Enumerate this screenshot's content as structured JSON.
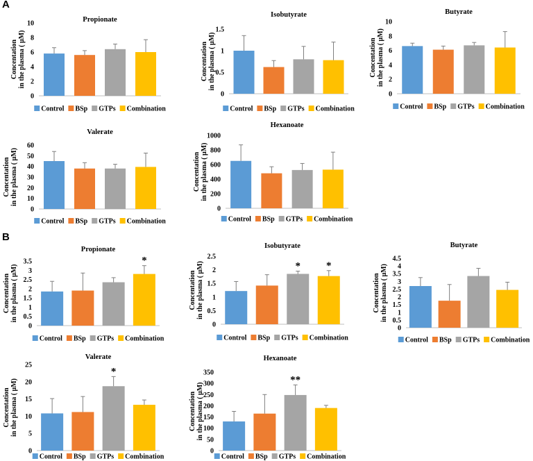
{
  "panels": [
    {
      "label": "A"
    },
    {
      "label": "B"
    }
  ],
  "legend": {
    "items": [
      "Control",
      "BSp",
      "GTPs",
      "Combination"
    ],
    "colors": [
      "#5b9bd5",
      "#ed7d31",
      "#a5a5a5",
      "#ffc000"
    ]
  },
  "y_axis_label_line1": "Concentation",
  "y_axis_label_line2": "in the plasma ( μM)",
  "chart_data": [
    {
      "panel": "A",
      "type": "bar",
      "title": "Propionate",
      "categories": [
        "Control",
        "BSp",
        "GTPs",
        "Combination"
      ],
      "values": [
        5.8,
        5.6,
        6.4,
        6.0
      ],
      "errors": [
        0.8,
        0.6,
        0.7,
        1.7
      ],
      "significance": [
        "",
        "",
        "",
        ""
      ],
      "ylim": [
        0,
        10
      ],
      "yticks": [
        "0",
        "2",
        "4",
        "6",
        "8",
        "10"
      ]
    },
    {
      "panel": "A",
      "type": "bar",
      "title": "Isobutyrate",
      "categories": [
        "Control",
        "BSp",
        "GTPs",
        "Combination"
      ],
      "values": [
        1.0,
        0.62,
        0.8,
        0.78
      ],
      "errors": [
        0.35,
        0.15,
        0.3,
        0.42
      ],
      "significance": [
        "",
        "",
        "",
        ""
      ],
      "ylim": [
        0,
        1.5
      ],
      "yticks": [
        "0",
        "0.5",
        "1",
        "1.5"
      ]
    },
    {
      "panel": "A",
      "type": "bar",
      "title": "Butyrate",
      "categories": [
        "Control",
        "BSp",
        "GTPs",
        "Combination"
      ],
      "values": [
        6.6,
        6.1,
        6.7,
        6.4
      ],
      "errors": [
        0.4,
        0.5,
        0.4,
        2.2
      ],
      "significance": [
        "",
        "",
        "",
        ""
      ],
      "ylim": [
        0,
        10
      ],
      "yticks": [
        "0",
        "2",
        "4",
        "6",
        "8",
        "10"
      ]
    },
    {
      "panel": "A",
      "type": "bar",
      "title": "Valerate",
      "categories": [
        "Control",
        "BSp",
        "GTPs",
        "Combination"
      ],
      "values": [
        45,
        38,
        38,
        39.5
      ],
      "errors": [
        9,
        5.5,
        4,
        13
      ],
      "significance": [
        "",
        "",
        "",
        ""
      ],
      "ylim": [
        0,
        60
      ],
      "yticks": [
        "0",
        "10",
        "20",
        "30",
        "40",
        "50",
        "60"
      ]
    },
    {
      "panel": "A",
      "type": "bar",
      "title": "Hexanoate",
      "categories": [
        "Control",
        "BSp",
        "GTPs",
        "Combination"
      ],
      "values": [
        650,
        480,
        525,
        530
      ],
      "errors": [
        220,
        90,
        90,
        240
      ],
      "significance": [
        "",
        "",
        "",
        ""
      ],
      "ylim": [
        0,
        1000
      ],
      "yticks": [
        "0",
        "200",
        "400",
        "600",
        "800",
        "1000"
      ]
    },
    {
      "panel": "B",
      "type": "bar",
      "title": "Propionate",
      "categories": [
        "Control",
        "BSp",
        "GTPs",
        "Combination"
      ],
      "values": [
        1.85,
        1.9,
        2.35,
        2.8
      ],
      "errors": [
        0.55,
        0.95,
        0.25,
        0.45
      ],
      "significance": [
        "",
        "",
        "",
        "*"
      ],
      "ylim": [
        0,
        3.5
      ],
      "yticks": [
        "0",
        "0.5",
        "1",
        "1.5",
        "2",
        "2.5",
        "3",
        "3.5"
      ]
    },
    {
      "panel": "B",
      "type": "bar",
      "title": "Isobutyrate",
      "categories": [
        "Control",
        "BSp",
        "GTPs",
        "Combination"
      ],
      "values": [
        1.22,
        1.42,
        1.85,
        1.77
      ],
      "errors": [
        0.35,
        0.4,
        0.1,
        0.2
      ],
      "significance": [
        "",
        "",
        "*",
        "*"
      ],
      "ylim": [
        0,
        2.5
      ],
      "yticks": [
        "0",
        "0.5",
        "1",
        "1.5",
        "2",
        "2.5"
      ]
    },
    {
      "panel": "B",
      "type": "bar",
      "title": "Butyrate",
      "categories": [
        "Control",
        "BSp",
        "GTPs",
        "Combination"
      ],
      "values": [
        2.7,
        1.75,
        3.35,
        2.45
      ],
      "errors": [
        0.55,
        1.05,
        0.5,
        0.5
      ],
      "significance": [
        "",
        "",
        "",
        ""
      ],
      "ylim": [
        0,
        4.5
      ],
      "yticks": [
        "0",
        "0.5",
        "1",
        "1.5",
        "2",
        "2.5",
        "3",
        "3.5",
        "4",
        "4.5"
      ]
    },
    {
      "panel": "B",
      "type": "bar",
      "title": "Valerate",
      "categories": [
        "Control",
        "BSp",
        "GTPs",
        "Combination"
      ],
      "values": [
        10.8,
        11.2,
        18.7,
        13.3
      ],
      "errors": [
        4.3,
        4.5,
        2.8,
        1.4
      ],
      "significance": [
        "",
        "",
        "*",
        ""
      ],
      "ylim": [
        0,
        25
      ],
      "yticks": [
        "0",
        "5",
        "10",
        "15",
        "20",
        "25"
      ]
    },
    {
      "panel": "B",
      "type": "bar",
      "title": "Hexanoate",
      "categories": [
        "Control",
        "BSp",
        "GTPs",
        "Combination"
      ],
      "values": [
        130,
        165,
        248,
        190
      ],
      "errors": [
        45,
        85,
        45,
        12
      ],
      "significance": [
        "",
        "",
        "**",
        ""
      ],
      "ylim": [
        0,
        350
      ],
      "yticks": [
        "0",
        "50",
        "100",
        "150",
        "200",
        "250",
        "300",
        "350"
      ]
    }
  ]
}
